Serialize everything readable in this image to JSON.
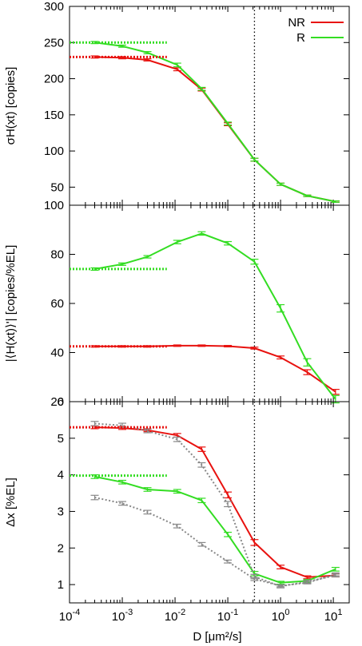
{
  "chart_data": [
    {
      "type": "line",
      "ylabel": "σH(xt) [copies]",
      "xscale": "log",
      "xlim": [
        0.0001,
        20
      ],
      "ylim": [
        25,
        300
      ],
      "yticks": [
        50,
        100,
        150,
        200,
        250,
        300
      ],
      "vline_x": 0.32,
      "legend": {
        "position": "top-right",
        "entries": [
          "NR",
          "R"
        ]
      },
      "series": [
        {
          "name": "NR",
          "color": "#e8120f",
          "style": "solid",
          "x": [
            0.0003,
            0.001,
            0.003,
            0.011,
            0.032,
            0.1,
            0.32,
            1.0,
            3.2,
            11.0
          ],
          "y": [
            230,
            229,
            226,
            213,
            185,
            137,
            88,
            54,
            38,
            30
          ],
          "err": [
            1.5,
            1.5,
            1.5,
            2,
            2,
            2,
            2,
            1.5,
            1,
            1
          ]
        },
        {
          "name": "R",
          "color": "#33dd22",
          "style": "solid",
          "x": [
            0.0003,
            0.001,
            0.003,
            0.011,
            0.032,
            0.1,
            0.32,
            1.0,
            3.2,
            11.0
          ],
          "y": [
            250,
            245,
            236,
            219,
            186,
            138,
            88,
            54,
            38,
            30
          ],
          "err": [
            1.5,
            1.5,
            1.5,
            2.5,
            2,
            2,
            2,
            1.5,
            1,
            1
          ]
        },
        {
          "color": "#e8120f",
          "style": "dotted-ref",
          "x": [
            0.0001,
            0.007
          ],
          "y": [
            230,
            230
          ]
        },
        {
          "color": "#33dd22",
          "style": "dotted-ref",
          "x": [
            0.0001,
            0.007
          ],
          "y": [
            250,
            250
          ]
        }
      ]
    },
    {
      "type": "line",
      "ylabel": "|⟨H(xt)⟩'| [copies/%EL]",
      "xscale": "log",
      "xlim": [
        0.0001,
        20
      ],
      "ylim": [
        20,
        100
      ],
      "yticks": [
        20,
        40,
        60,
        80,
        100
      ],
      "vline_x": 0.32,
      "series": [
        {
          "name": "NR",
          "color": "#e8120f",
          "style": "solid",
          "x": [
            0.0003,
            0.001,
            0.003,
            0.011,
            0.032,
            0.1,
            0.32,
            1.0,
            3.2,
            11.0
          ],
          "y": [
            42.5,
            42.5,
            42.5,
            42.8,
            42.8,
            42.6,
            41.8,
            38,
            32,
            24
          ],
          "err": [
            0.3,
            0.3,
            0.3,
            0.3,
            0.3,
            0.3,
            0.4,
            0.6,
            1,
            1
          ]
        },
        {
          "name": "R",
          "color": "#33dd22",
          "style": "solid",
          "x": [
            0.0003,
            0.001,
            0.003,
            0.011,
            0.032,
            0.1,
            0.32,
            1.0,
            3.2,
            11.0
          ],
          "y": [
            74,
            76,
            79,
            85,
            88.5,
            84.5,
            77,
            58,
            36,
            21
          ],
          "err": [
            0.5,
            0.5,
            0.5,
            0.7,
            0.7,
            0.7,
            1,
            1.5,
            1.5,
            1.5
          ]
        },
        {
          "color": "#e8120f",
          "style": "dotted-ref",
          "x": [
            0.0001,
            0.007
          ],
          "y": [
            42.5,
            42.5
          ]
        },
        {
          "color": "#33dd22",
          "style": "dotted-ref",
          "x": [
            0.0001,
            0.007
          ],
          "y": [
            74,
            74
          ]
        }
      ]
    },
    {
      "type": "line",
      "ylabel": "Δx [%EL]",
      "xlabel": "D [μm²/s]",
      "xscale": "log",
      "xlim": [
        0.0001,
        20
      ],
      "ylim": [
        0.5,
        6
      ],
      "yticks": [
        1,
        2,
        3,
        4,
        5,
        6
      ],
      "xticks": [
        "10-4",
        "10-3",
        "10-2",
        "10-1",
        "100",
        "101"
      ],
      "vline_x": 0.32,
      "series": [
        {
          "name": "NR",
          "color": "#e8120f",
          "style": "solid",
          "x": [
            0.0003,
            0.001,
            0.003,
            0.011,
            0.032,
            0.1,
            0.32,
            1.0,
            3.2,
            11.0
          ],
          "y": [
            5.3,
            5.28,
            5.22,
            5.08,
            4.7,
            3.45,
            2.15,
            1.48,
            1.2,
            1.25
          ],
          "err": [
            0.04,
            0.04,
            0.04,
            0.05,
            0.06,
            0.08,
            0.08,
            0.05,
            0.04,
            0.04
          ]
        },
        {
          "name": "R",
          "color": "#33dd22",
          "style": "solid",
          "x": [
            0.0003,
            0.001,
            0.003,
            0.011,
            0.032,
            0.1,
            0.32,
            1.0,
            3.2,
            11.0
          ],
          "y": [
            3.95,
            3.8,
            3.6,
            3.55,
            3.3,
            2.37,
            1.3,
            1.05,
            1.1,
            1.42
          ],
          "err": [
            0.05,
            0.05,
            0.05,
            0.05,
            0.06,
            0.06,
            0.06,
            0.04,
            0.04,
            0.05
          ]
        },
        {
          "color": "#888888",
          "style": "dotted",
          "x": [
            0.0003,
            0.001,
            0.003,
            0.011,
            0.032,
            0.1,
            0.32,
            1.0,
            3.2,
            11.0
          ],
          "y": [
            5.4,
            5.35,
            5.2,
            4.97,
            4.27,
            3.2,
            1.22,
            0.95,
            1.08,
            1.25
          ],
          "err": [
            0.06,
            0.06,
            0.05,
            0.06,
            0.06,
            0.07,
            0.06,
            0.04,
            0.04,
            0.04
          ]
        },
        {
          "color": "#888888",
          "style": "dotted",
          "x": [
            0.0003,
            0.001,
            0.003,
            0.011,
            0.032,
            0.1,
            0.32,
            1.0,
            3.2,
            11.0
          ],
          "y": [
            3.38,
            3.22,
            2.98,
            2.6,
            2.1,
            1.63,
            1.15,
            0.97,
            1.05,
            1.28
          ],
          "err": [
            0.06,
            0.05,
            0.05,
            0.05,
            0.05,
            0.04,
            0.04,
            0.03,
            0.03,
            0.04
          ]
        },
        {
          "color": "#e8120f",
          "style": "dotted-ref",
          "x": [
            0.0001,
            0.007
          ],
          "y": [
            5.3,
            5.3
          ]
        },
        {
          "color": "#33dd22",
          "style": "dotted-ref",
          "x": [
            0.0001,
            0.007
          ],
          "y": [
            3.98,
            3.98
          ]
        }
      ]
    }
  ]
}
